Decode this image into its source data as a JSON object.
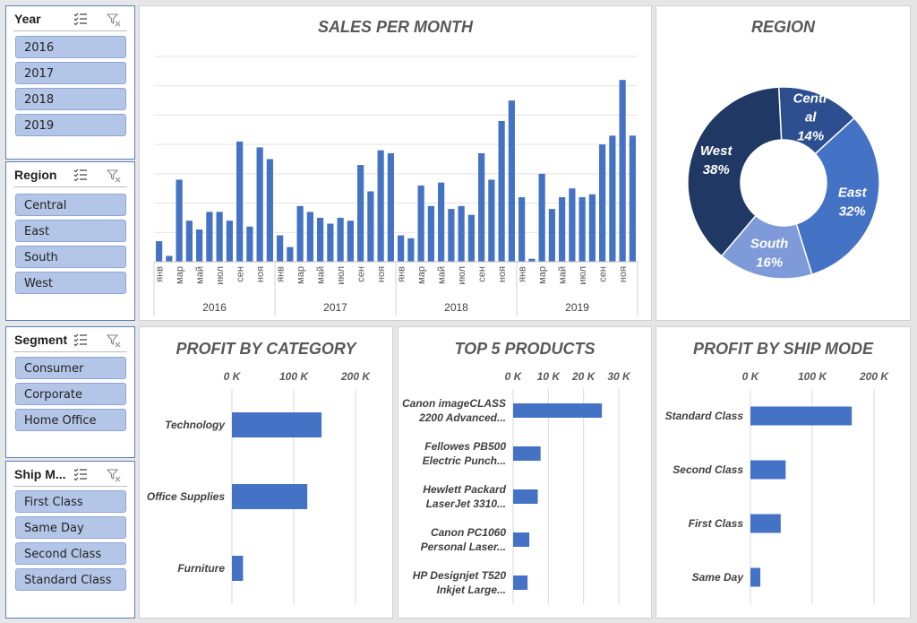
{
  "slicers": {
    "year": {
      "title": "Year",
      "items": [
        "2016",
        "2017",
        "2018",
        "2019"
      ]
    },
    "region": {
      "title": "Region",
      "items": [
        "Central",
        "East",
        "South",
        "West"
      ]
    },
    "segment": {
      "title": "Segment",
      "items": [
        "Consumer",
        "Corporate",
        "Home Office"
      ]
    },
    "ship_mode": {
      "title": "Ship M...",
      "items": [
        "First Class",
        "Same Day",
        "Second Class",
        "Standard Class"
      ]
    }
  },
  "chart_data": [
    {
      "type": "bar",
      "title": "SALES PER MONTH",
      "month_labels": [
        "янв",
        "",
        "мар",
        "",
        "май",
        "",
        "июл",
        "",
        "сен",
        "",
        "ноя",
        ""
      ],
      "years": [
        "2016",
        "2017",
        "2018",
        "2019"
      ],
      "values": [
        7,
        2,
        28,
        14,
        11,
        17,
        17,
        14,
        41,
        12,
        39,
        35,
        9,
        5,
        19,
        17,
        15,
        13,
        15,
        14,
        33,
        24,
        38,
        37,
        9,
        8,
        26,
        19,
        27,
        18,
        19,
        16,
        37,
        28,
        48,
        55,
        22,
        1,
        30,
        18,
        22,
        25,
        22,
        23,
        40,
        43,
        62,
        43
      ],
      "ylim": [
        0,
        70
      ],
      "grid": true,
      "legend": "none"
    },
    {
      "type": "pie",
      "title": "REGION",
      "slices": [
        {
          "name": "Central",
          "label_lines": [
            "Centr",
            "al"
          ],
          "value": 14,
          "label": "14%",
          "color": "#2e4f8f"
        },
        {
          "name": "East",
          "label_lines": [
            "East"
          ],
          "value": 32,
          "label": "32%",
          "color": "#4472c4"
        },
        {
          "name": "South",
          "label_lines": [
            "South"
          ],
          "value": 16,
          "label": "16%",
          "color": "#7e9ad8"
        },
        {
          "name": "West",
          "label_lines": [
            "West"
          ],
          "value": 38,
          "label": "38%",
          "color": "#203864"
        }
      ]
    },
    {
      "type": "bar",
      "orientation": "horizontal",
      "title": "PROFIT BY CATEGORY",
      "categories": [
        "Technology",
        "Office Supplies",
        "Furniture"
      ],
      "values": [
        145000,
        122000,
        18000
      ],
      "xticks": [
        "0 K",
        "100 K",
        "200 K"
      ],
      "xlim": [
        0,
        200000
      ],
      "color": "#4472c4"
    },
    {
      "type": "bar",
      "orientation": "horizontal",
      "title": "TOP 5 PRODUCTS",
      "categories": [
        [
          "Canon imageCLASS",
          "2200 Advanced..."
        ],
        [
          "Fellowes PB500",
          "Electric Punch..."
        ],
        [
          "Hewlett Packard",
          "LaserJet 3310..."
        ],
        [
          "Canon PC1060",
          "Personal Laser..."
        ],
        [
          "HP Designjet T520",
          "Inkjet Large..."
        ]
      ],
      "values": [
        25200,
        7800,
        7000,
        4600,
        4100
      ],
      "xticks": [
        "0 K",
        "10 K",
        "20 K",
        "30 K"
      ],
      "xlim": [
        0,
        30000
      ],
      "color": "#4472c4"
    },
    {
      "type": "bar",
      "orientation": "horizontal",
      "title": "PROFIT BY SHIP MODE",
      "categories": [
        "Standard Class",
        "Second Class",
        "First Class",
        "Same Day"
      ],
      "values": [
        164000,
        57000,
        49000,
        16000
      ],
      "xticks": [
        "0 K",
        "100 K",
        "200 K"
      ],
      "xlim": [
        0,
        200000
      ],
      "color": "#4472c4"
    }
  ]
}
